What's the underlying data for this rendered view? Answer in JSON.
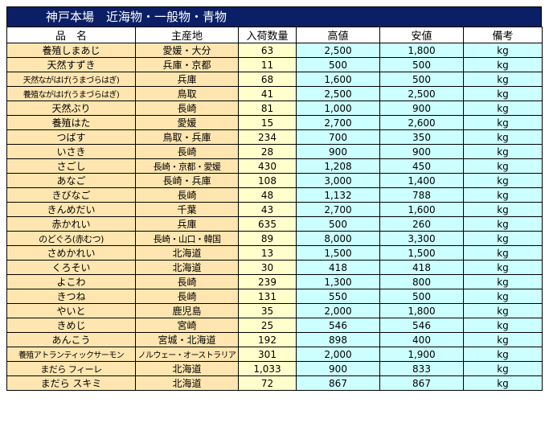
{
  "title": "神戸本場　近海物・一般物・青物",
  "headers": {
    "name": "品　名",
    "origin": "主産地",
    "qty": "入荷数量",
    "high": "高値",
    "low": "安値",
    "note": "備考"
  },
  "rows": [
    {
      "name": "養殖しまあじ",
      "origin": "愛媛・大分",
      "qty": "63",
      "high": "2,500",
      "low": "1,800",
      "unit": "kg"
    },
    {
      "name": "天然すずき",
      "origin": "兵庫・京都",
      "qty": "11",
      "high": "500",
      "low": "500",
      "unit": "kg"
    },
    {
      "name": "天然ながはげ(うまづらはぎ)",
      "origin": "兵庫",
      "qty": "68",
      "high": "1,600",
      "low": "500",
      "unit": "kg"
    },
    {
      "name": "養殖ながはげ(うまづらはぎ)",
      "origin": "鳥取",
      "qty": "41",
      "high": "2,500",
      "low": "2,500",
      "unit": "kg"
    },
    {
      "name": "天然ぶり",
      "origin": "長崎",
      "qty": "81",
      "high": "1,000",
      "low": "900",
      "unit": "kg"
    },
    {
      "name": "養殖はた",
      "origin": "愛媛",
      "qty": "15",
      "high": "2,700",
      "low": "2,600",
      "unit": "kg"
    },
    {
      "name": "つばす",
      "origin": "鳥取・兵庫",
      "qty": "234",
      "high": "700",
      "low": "350",
      "unit": "kg"
    },
    {
      "name": "いさき",
      "origin": "長崎",
      "qty": "28",
      "high": "900",
      "low": "900",
      "unit": "kg"
    },
    {
      "name": "さごし",
      "origin": "長崎・京都・愛媛",
      "qty": "430",
      "high": "1,208",
      "low": "450",
      "unit": "kg"
    },
    {
      "name": "あなご",
      "origin": "長崎・兵庫",
      "qty": "108",
      "high": "3,000",
      "low": "1,400",
      "unit": "kg"
    },
    {
      "name": "きびなご",
      "origin": "長崎",
      "qty": "48",
      "high": "1,132",
      "low": "788",
      "unit": "kg"
    },
    {
      "name": "きんめだい",
      "origin": "千葉",
      "qty": "43",
      "high": "2,700",
      "low": "1,600",
      "unit": "kg"
    },
    {
      "name": "赤かれい",
      "origin": "兵庫",
      "qty": "635",
      "high": "500",
      "low": "260",
      "unit": "kg"
    },
    {
      "name": "のどぐろ(赤むつ)",
      "origin": "長崎・山口・韓国",
      "qty": "89",
      "high": "8,000",
      "low": "3,300",
      "unit": "kg"
    },
    {
      "name": "さめかれい",
      "origin": "北海道",
      "qty": "13",
      "high": "1,500",
      "low": "1,500",
      "unit": "kg"
    },
    {
      "name": "くろそい",
      "origin": "北海道",
      "qty": "30",
      "high": "418",
      "low": "418",
      "unit": "kg"
    },
    {
      "name": "よこわ",
      "origin": "長崎",
      "qty": "239",
      "high": "1,300",
      "low": "800",
      "unit": "kg"
    },
    {
      "name": "きつね",
      "origin": "長崎",
      "qty": "131",
      "high": "550",
      "low": "500",
      "unit": "kg"
    },
    {
      "name": "やいと",
      "origin": "鹿児島",
      "qty": "35",
      "high": "2,000",
      "low": "1,800",
      "unit": "kg"
    },
    {
      "name": "きめじ",
      "origin": "宮崎",
      "qty": "25",
      "high": "546",
      "low": "546",
      "unit": "kg"
    },
    {
      "name": "あんこう",
      "origin": "宮城・北海道",
      "qty": "192",
      "high": "898",
      "low": "400",
      "unit": "kg"
    },
    {
      "name": "養殖アトランティックサーモン",
      "origin": "ノルウェー・オーストラリア",
      "qty": "301",
      "high": "2,000",
      "low": "1,900",
      "unit": "kg"
    },
    {
      "name": "まだら フィーレ",
      "origin": "北海道",
      "qty": "1,033",
      "high": "900",
      "low": "833",
      "unit": "kg"
    },
    {
      "name": "まだら スキミ",
      "origin": "北海道",
      "qty": "72",
      "high": "867",
      "low": "867",
      "unit": "kg"
    }
  ]
}
